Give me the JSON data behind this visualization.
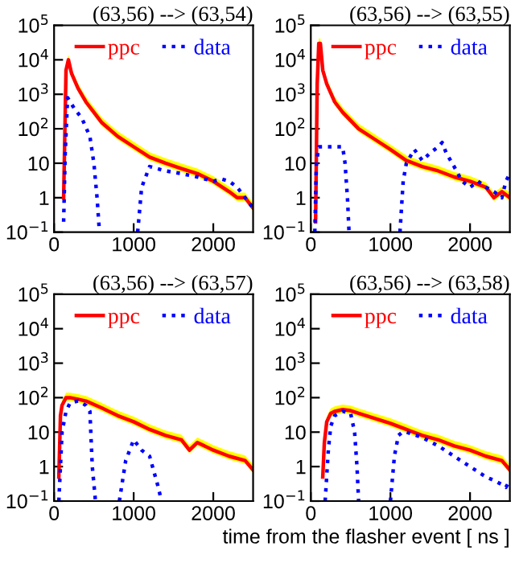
{
  "chart_data": [
    {
      "type": "line",
      "title": "(63,56) --> (63,54)",
      "log": "y",
      "xlim": [
        0,
        2500
      ],
      "xticks": [
        0,
        1000,
        2000
      ],
      "ylim": [
        0.1,
        100000
      ],
      "yticks": [
        {
          "value": 0.1,
          "label": "10$^{−1}$"
        },
        1,
        10,
        {
          "value": 100,
          "label": "10$^{2}$"
        },
        {
          "value": 1000,
          "label": "10$^{3}$"
        },
        {
          "value": 10000,
          "label": "10$^{4}$"
        },
        {
          "value": 100000,
          "label": "10$^{5}$"
        }
      ],
      "legend": "top",
      "grid": false,
      "series": [
        {
          "name": "ppc",
          "color": "#ff0000",
          "line_style": "solid",
          "x": [
            120,
            150,
            180,
            220,
            300,
            400,
            500,
            600,
            800,
            1000,
            1200,
            1400,
            1600,
            1800,
            2000,
            2200,
            2300,
            2400,
            2500
          ],
          "values": [
            1,
            5000,
            10000,
            4000,
            1500,
            600,
            300,
            150,
            60,
            30,
            15,
            10,
            7,
            5,
            3,
            1.5,
            1,
            1,
            0.5
          ],
          "upper": [
            1.4,
            7000,
            14000,
            5600,
            2100,
            840,
            420,
            210,
            84,
            42,
            21,
            14,
            9.8,
            7,
            4.2,
            2.1,
            1.4,
            1.4,
            0.7
          ],
          "lower": [
            0.8,
            4000,
            8000,
            3200,
            1200,
            480,
            240,
            120,
            48,
            24,
            12,
            8,
            5.6,
            4,
            2.4,
            1.2,
            0.8,
            0.8,
            0.4
          ]
        },
        {
          "name": "data",
          "color": "#0000ff",
          "line_style": "dotted",
          "x": [
            120,
            140,
            170,
            250,
            350,
            450,
            500,
            540,
            570,
            800,
            1050,
            1100,
            1200,
            1400,
            1600,
            1800,
            2000,
            2100,
            2200,
            2300,
            2400,
            2500
          ],
          "values": [
            0.2,
            20,
            800,
            400,
            200,
            60,
            10,
            1,
            0.1,
            null,
            0.1,
            2,
            8,
            6,
            5,
            4,
            3,
            3.5,
            3,
            2,
            1,
            0.5
          ]
        }
      ]
    },
    {
      "type": "line",
      "title": "(63,56) --> (63,55)",
      "log": "y",
      "xlim": [
        0,
        2500
      ],
      "xticks": [
        0,
        1000,
        2000
      ],
      "ylim": [
        0.1,
        100000
      ],
      "yticks": [
        {
          "value": 0.1,
          "label": "10$^{−1}$"
        },
        1,
        10,
        {
          "value": 100,
          "label": "10$^{2}$"
        },
        {
          "value": 1000,
          "label": "10$^{3}$"
        },
        {
          "value": 10000,
          "label": "10$^{4}$"
        },
        {
          "value": 100000,
          "label": "10$^{5}$"
        }
      ],
      "legend": "top",
      "grid": false,
      "series": [
        {
          "name": "ppc",
          "color": "#ff0000",
          "line_style": "solid",
          "x": [
            60,
            80,
            100,
            120,
            150,
            200,
            300,
            400,
            600,
            800,
            1000,
            1200,
            1400,
            1600,
            1800,
            2000,
            2200,
            2300,
            2400,
            2500
          ],
          "values": [
            0.2,
            2000,
            30000,
            30000,
            5000,
            2000,
            600,
            300,
            100,
            50,
            25,
            12,
            8,
            6,
            4,
            3,
            2,
            1,
            1.5,
            1
          ],
          "upper": [
            0.28,
            2800,
            42000,
            42000,
            7000,
            2800,
            840,
            420,
            140,
            70,
            35,
            16.8,
            11.2,
            8.4,
            5.6,
            4.2,
            2.8,
            1.4,
            2.1,
            1.4
          ],
          "lower": [
            0.16,
            1600,
            24000,
            24000,
            4000,
            1600,
            480,
            240,
            80,
            40,
            20,
            9.6,
            6.4,
            4.8,
            3.2,
            2.4,
            1.6,
            0.8,
            1.2,
            0.8
          ]
        },
        {
          "name": "data",
          "color": "#0000ff",
          "line_style": "dotted",
          "x": [
            50,
            70,
            100,
            200,
            350,
            400,
            430,
            460,
            480,
            800,
            1120,
            1160,
            1200,
            1300,
            1400,
            1500,
            1600,
            1650,
            1700,
            1800,
            1900,
            2000,
            2100,
            2200,
            2300,
            2400,
            2450,
            2500
          ],
          "values": [
            0.1,
            10,
            30,
            30,
            30,
            30,
            10,
            1,
            0.1,
            null,
            0.1,
            3,
            10,
            25,
            12,
            20,
            30,
            40,
            20,
            8,
            3,
            2,
            3,
            2,
            1.5,
            1,
            3,
            5
          ]
        }
      ]
    },
    {
      "type": "line",
      "title": "(63,56) --> (63,57)",
      "log": "y",
      "xlim": [
        0,
        2500
      ],
      "xticks": [
        0,
        1000,
        2000
      ],
      "ylim": [
        0.1,
        100000
      ],
      "yticks": [
        {
          "value": 0.1,
          "label": "10$^{−1}$"
        },
        1,
        10,
        {
          "value": 100,
          "label": "10$^{2}$"
        },
        {
          "value": 1000,
          "label": "10$^{3}$"
        },
        {
          "value": 10000,
          "label": "10$^{4}$"
        },
        {
          "value": 100000,
          "label": "10$^{5}$"
        }
      ],
      "legend": "top",
      "grid": false,
      "series": [
        {
          "name": "ppc",
          "color": "#ff0000",
          "line_style": "solid",
          "x": [
            60,
            80,
            100,
            150,
            200,
            300,
            400,
            600,
            800,
            1000,
            1200,
            1400,
            1600,
            1700,
            1800,
            2000,
            2200,
            2400,
            2500
          ],
          "values": [
            0.5,
            30,
            60,
            100,
            100,
            90,
            80,
            50,
            30,
            20,
            12,
            8,
            6,
            3,
            5,
            3,
            2,
            1.5,
            0.8
          ],
          "upper": [
            0.7,
            42,
            84,
            140,
            140,
            126,
            112,
            70,
            42,
            28,
            16.8,
            11.2,
            8.4,
            4.2,
            7,
            4.2,
            2.8,
            2.1,
            1.12
          ],
          "lower": [
            0.4,
            24,
            48,
            80,
            80,
            72,
            64,
            40,
            24,
            16,
            9.6,
            6.4,
            4.8,
            2.4,
            4,
            2.4,
            1.6,
            1.2,
            0.64
          ]
        },
        {
          "name": "data",
          "color": "#0000ff",
          "line_style": "dotted",
          "x": [
            60,
            80,
            100,
            150,
            200,
            300,
            400,
            450,
            480,
            520,
            700,
            820,
            900,
            1000,
            1100,
            1200,
            1300,
            1350
          ],
          "values": [
            0.1,
            1,
            10,
            40,
            70,
            80,
            60,
            40,
            1,
            0.1,
            null,
            0.1,
            1.5,
            6,
            3,
            2,
            0.3,
            0.1
          ]
        }
      ]
    },
    {
      "type": "line",
      "title": "(63,56) --> (63,58)",
      "xlabel": "time from the flasher event [ ns ]",
      "log": "y",
      "xlim": [
        0,
        2500
      ],
      "xticks": [
        0,
        1000,
        2000
      ],
      "ylim": [
        0.1,
        100000
      ],
      "yticks": [
        {
          "value": 0.1,
          "label": "10$^{−1}$"
        },
        1,
        10,
        {
          "value": 100,
          "label": "10$^{2}$"
        },
        {
          "value": 1000,
          "label": "10$^{3}$"
        },
        {
          "value": 10000,
          "label": "10$^{4}$"
        },
        {
          "value": 100000,
          "label": "10$^{5}$"
        }
      ],
      "legend": "top",
      "grid": false,
      "series": [
        {
          "name": "ppc",
          "color": "#ff0000",
          "line_style": "solid",
          "x": [
            150,
            170,
            200,
            250,
            300,
            400,
            500,
            600,
            800,
            1000,
            1200,
            1400,
            1600,
            1800,
            2000,
            2200,
            2400,
            2500
          ],
          "values": [
            0.5,
            5,
            20,
            35,
            40,
            45,
            42,
            35,
            25,
            18,
            12,
            8,
            6,
            4,
            3,
            2,
            1.5,
            0.8
          ],
          "upper": [
            0.7,
            7,
            28,
            49,
            56,
            63,
            58.8,
            49,
            35,
            25.2,
            16.8,
            11.2,
            8.4,
            5.6,
            4.2,
            2.8,
            2.1,
            1.12
          ],
          "lower": [
            0.4,
            4,
            16,
            28,
            32,
            36,
            33.6,
            28,
            20,
            14.4,
            9.6,
            6.4,
            4.8,
            3.2,
            2.4,
            1.6,
            1.2,
            0.64
          ]
        },
        {
          "name": "data",
          "color": "#0000ff",
          "line_style": "dotted",
          "x": [
            180,
            220,
            250,
            300,
            400,
            500,
            550,
            580,
            600,
            800,
            1000,
            1050,
            1100,
            1150,
            1200,
            1400,
            1600,
            1800,
            2000,
            2200,
            2300,
            2400,
            2450,
            2500
          ],
          "values": [
            0.1,
            3,
            15,
            30,
            40,
            35,
            10,
            1,
            0.1,
            null,
            0.1,
            2,
            8,
            10,
            10,
            7,
            4,
            2,
            1,
            0.5,
            0.4,
            0.3,
            0.25,
            0.4
          ]
        }
      ]
    }
  ]
}
